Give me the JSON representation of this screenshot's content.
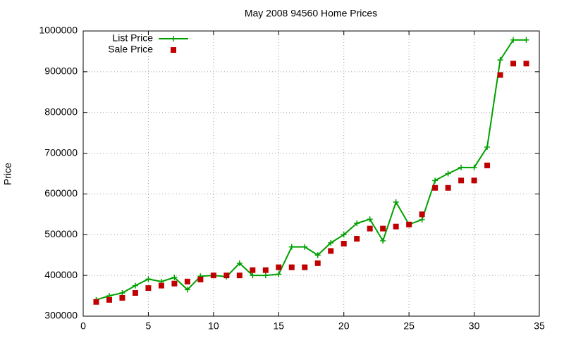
{
  "chart_data": {
    "type": "line",
    "title": "May 2008 94560 Home Prices",
    "y_label": "Price",
    "x": [
      1,
      2,
      3,
      4,
      5,
      6,
      7,
      8,
      9,
      10,
      11,
      12,
      13,
      14,
      15,
      16,
      17,
      18,
      19,
      20,
      21,
      22,
      23,
      24,
      25,
      26,
      27,
      28,
      29,
      30,
      31,
      32,
      33,
      34
    ],
    "series": [
      {
        "name": "List Price",
        "color": "#00a000",
        "style": "line-points",
        "values": [
          340000,
          350000,
          357000,
          375000,
          391000,
          385000,
          395000,
          365000,
          398000,
          400000,
          397000,
          430000,
          400000,
          400000,
          403000,
          470000,
          470000,
          450000,
          480000,
          500000,
          528000,
          538000,
          485000,
          580000,
          525000,
          537000,
          633000,
          650000,
          665000,
          665000,
          715000,
          929000,
          978000,
          978000
        ]
      },
      {
        "name": "Sale Price",
        "color": "#c00000",
        "style": "points",
        "values": [
          335000,
          340000,
          345000,
          357000,
          369000,
          375000,
          380000,
          385000,
          390000,
          400000,
          400000,
          400000,
          413000,
          413000,
          420000,
          420000,
          420000,
          430000,
          460000,
          478000,
          490000,
          515000,
          515000,
          520000,
          525000,
          550000,
          615000,
          615000,
          633000,
          633000,
          670000,
          892000,
          920000,
          920000
        ]
      }
    ],
    "xlim": [
      0,
      35
    ],
    "xticks": [
      0,
      5,
      10,
      15,
      20,
      25,
      30,
      35
    ],
    "ylim": [
      300000,
      1000000
    ],
    "yticks": [
      300000,
      400000,
      500000,
      600000,
      700000,
      800000,
      900000,
      1000000
    ],
    "grid": true,
    "legend": "top-left"
  }
}
